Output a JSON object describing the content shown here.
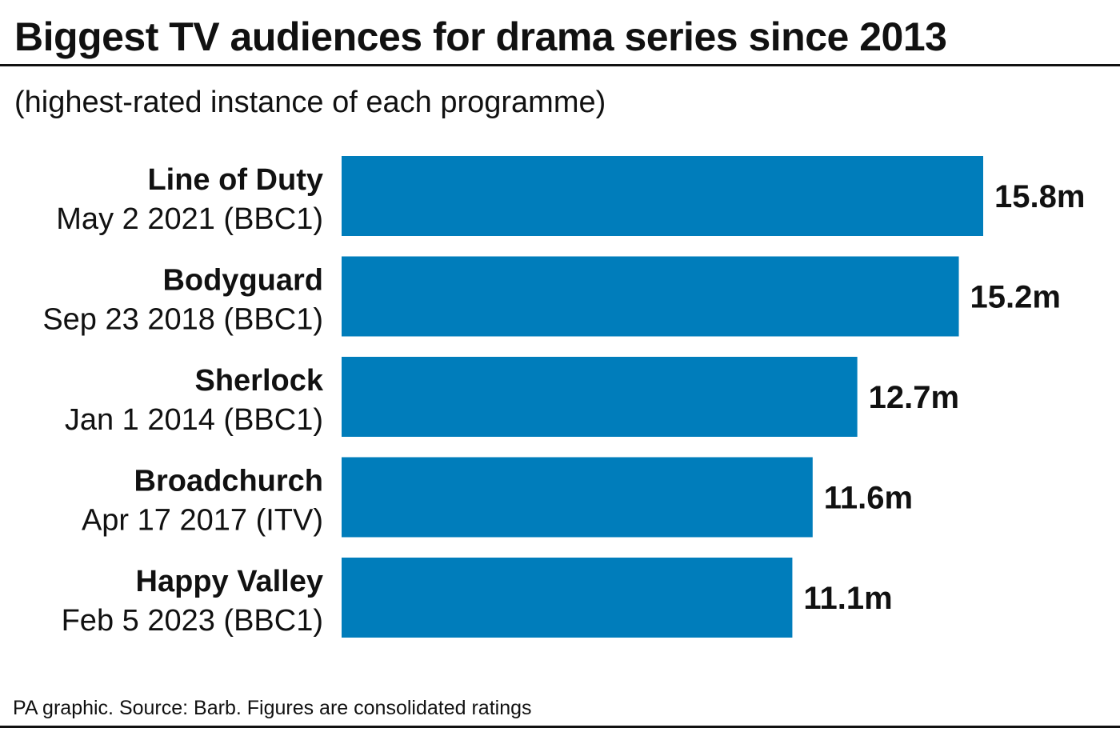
{
  "header": {
    "title": "Biggest TV audiences for drama series since 2013",
    "subtitle": "(highest-rated instance of each programme)"
  },
  "footer": {
    "source": "PA graphic. Source: Barb. Figures are consolidated ratings"
  },
  "colors": {
    "bar": "#007dbb",
    "text": "#111111"
  },
  "chart_data": {
    "type": "bar",
    "orientation": "horizontal",
    "title": "Biggest TV audiences for drama series since 2013",
    "subtitle": "(highest-rated instance of each programme)",
    "categories": [
      "Line of Duty",
      "Bodyguard",
      "Sherlock",
      "Broadchurch",
      "Happy Valley"
    ],
    "details": [
      "May 2 2021 (BBC1)",
      "Sep 23 2018 (BBC1)",
      "Jan 1 2014 (BBC1)",
      "Apr 17 2017 (ITV)",
      "Feb 5 2023 (BBC1)"
    ],
    "values": [
      15.8,
      15.2,
      12.7,
      11.6,
      11.1
    ],
    "value_labels": [
      "15.8m",
      "15.2m",
      "12.7m",
      "11.6m",
      "11.1m"
    ],
    "units": "millions of viewers",
    "xlim": [
      0,
      15.8
    ],
    "grid": false,
    "legend": "none"
  }
}
